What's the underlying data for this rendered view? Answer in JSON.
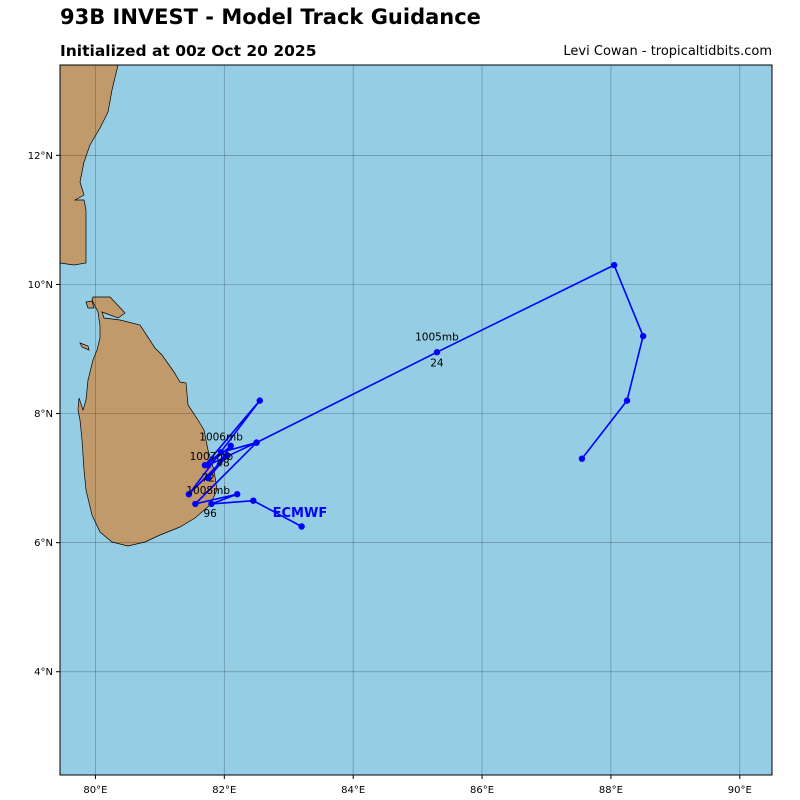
{
  "header": {
    "title": "93B INVEST - Model Track Guidance",
    "subtitle": "Initialized at 00z Oct 20 2025",
    "credit": "Levi Cowan - tropicaltidbits.com"
  },
  "map": {
    "lon_range": [
      79.45,
      90.5
    ],
    "lat_range": [
      2.4,
      13.4
    ],
    "ocean_color": "#94cde4",
    "land_color": "#c19a6b",
    "grid": true,
    "lon_ticks": [
      {
        "value": 80,
        "label": "80°E"
      },
      {
        "value": 82,
        "label": "82°E"
      },
      {
        "value": 84,
        "label": "84°E"
      },
      {
        "value": 86,
        "label": "86°E"
      },
      {
        "value": 88,
        "label": "88°E"
      },
      {
        "value": 90,
        "label": "90°E"
      }
    ],
    "lat_ticks": [
      {
        "value": 4,
        "label": "4°N"
      },
      {
        "value": 6,
        "label": "6°N"
      },
      {
        "value": 8,
        "label": "8°N"
      },
      {
        "value": 10,
        "label": "10°N"
      },
      {
        "value": 12,
        "label": "12°N"
      }
    ]
  },
  "track": {
    "model": "ECMWF",
    "color": "#0000ff",
    "points": [
      {
        "lon": 83.2,
        "lat": 6.25
      },
      {
        "lon": 82.45,
        "lat": 6.65
      },
      {
        "lon": 81.8,
        "lat": 6.6
      },
      {
        "lon": 82.2,
        "lat": 6.75
      },
      {
        "lon": 81.55,
        "lat": 6.6
      },
      {
        "lon": 82.5,
        "lat": 7.55
      },
      {
        "lon": 81.75,
        "lat": 7.2
      },
      {
        "lon": 82.1,
        "lat": 7.5
      },
      {
        "lon": 81.75,
        "lat": 7.0
      },
      {
        "lon": 82.05,
        "lat": 7.35
      },
      {
        "lon": 81.45,
        "lat": 6.75
      },
      {
        "lon": 82.55,
        "lat": 8.2
      },
      {
        "lon": 81.7,
        "lat": 7.2
      },
      {
        "lon": 81.95,
        "lat": 7.4
      },
      {
        "lon": 82.5,
        "lat": 7.55
      },
      {
        "lon": 85.3,
        "lat": 8.95
      },
      {
        "lon": 88.05,
        "lat": 10.3
      },
      {
        "lon": 88.5,
        "lat": 9.2
      },
      {
        "lon": 88.25,
        "lat": 8.2
      },
      {
        "lon": 87.55,
        "lat": 7.3
      }
    ],
    "annotations": [
      {
        "text": "1005mb",
        "lon": 85.3,
        "lat": 9.13
      },
      {
        "text": "24",
        "lon": 85.3,
        "lat": 8.73
      },
      {
        "text": "1006mb",
        "lon": 81.95,
        "lat": 7.58
      },
      {
        "text": "1007mb",
        "lon": 81.8,
        "lat": 7.28
      },
      {
        "text": "48",
        "lon": 81.98,
        "lat": 7.18
      },
      {
        "text": "72",
        "lon": 81.75,
        "lat": 6.95
      },
      {
        "text": "1008mb",
        "lon": 81.75,
        "lat": 6.75
      },
      {
        "text": "96",
        "lon": 81.78,
        "lat": 6.4
      }
    ],
    "model_label": {
      "lon": 82.75,
      "lat": 6.4
    }
  }
}
